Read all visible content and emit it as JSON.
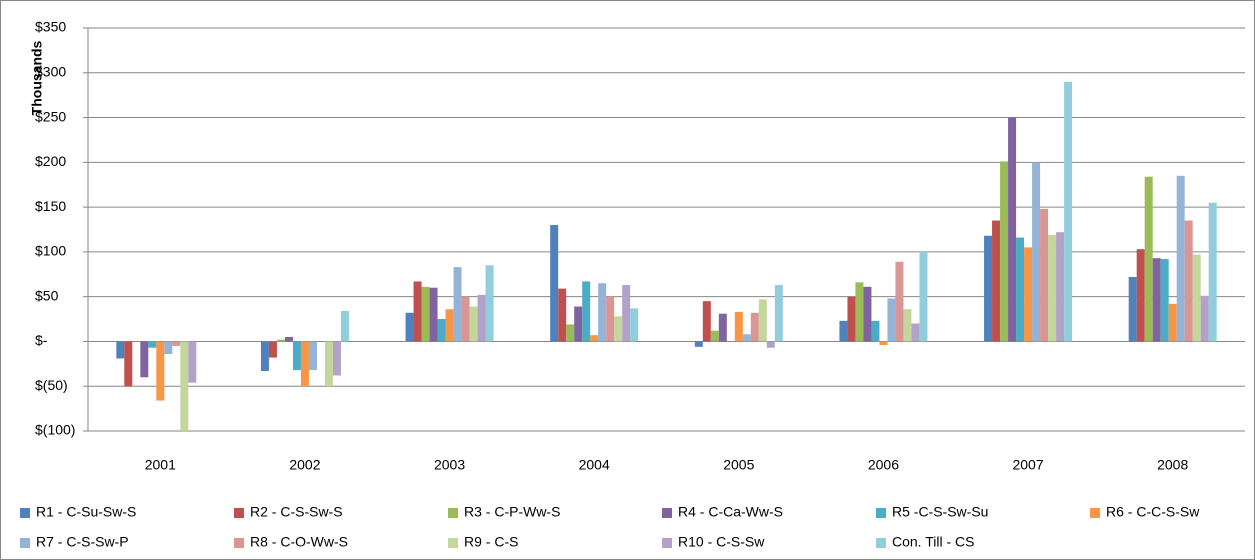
{
  "chart_data": {
    "type": "bar",
    "y_label": "Thousands",
    "categories": [
      "2001",
      "2002",
      "2003",
      "2004",
      "2005",
      "2006",
      "2007",
      "2008"
    ],
    "series": [
      {
        "name": "R1 - C-Su-Sw-S",
        "color": "#4f81bd",
        "values": [
          -19,
          -33,
          32,
          130,
          -6,
          23,
          118,
          72
        ]
      },
      {
        "name": "R2 - C-S-Sw-S",
        "color": "#c0504d",
        "values": [
          -50,
          -18,
          67,
          59,
          45,
          50,
          135,
          103
        ]
      },
      {
        "name": "R3 - C-P-Ww-S",
        "color": "#9bbb59",
        "values": [
          0,
          2,
          61,
          19,
          12,
          66,
          201,
          184
        ]
      },
      {
        "name": "R4 - C-Ca-Ww-S",
        "color": "#8064a2",
        "values": [
          -40,
          5,
          60,
          39,
          31,
          61,
          250,
          93
        ]
      },
      {
        "name": "R5 -C-S-Sw-Su",
        "color": "#4bacc6",
        "values": [
          -7,
          -32,
          25,
          67,
          0,
          23,
          116,
          92
        ]
      },
      {
        "name": "R6 - C-C-S-Sw",
        "color": "#f79646",
        "values": [
          -66,
          -50,
          36,
          7,
          33,
          -4,
          105,
          42
        ]
      },
      {
        "name": "R7 - C-S-Sw-P",
        "color": "#95b3d7",
        "values": [
          -14,
          -32,
          83,
          65,
          8,
          48,
          200,
          185
        ]
      },
      {
        "name": "R8 - C-O-Ww-S",
        "color": "#da9694",
        "values": [
          -5,
          0,
          50,
          50,
          32,
          89,
          148,
          135
        ]
      },
      {
        "name": "R9 - C-S",
        "color": "#c3d69b",
        "values": [
          -100,
          -50,
          39,
          28,
          47,
          36,
          119,
          97
        ]
      },
      {
        "name": "R10 - C-S-Sw",
        "color": "#b3a2c7",
        "values": [
          -46,
          -38,
          52,
          63,
          -7,
          20,
          122,
          51
        ]
      },
      {
        "name": "Con. Till - CS",
        "color": "#92cddc",
        "values": [
          0,
          34,
          85,
          37,
          63,
          100,
          290,
          155
        ]
      }
    ],
    "ylim": [
      -100,
      350
    ],
    "yticks": [
      {
        "value": -100,
        "label": "$(100)"
      },
      {
        "value": -50,
        "label": "$(50)"
      },
      {
        "value": 0,
        "label": "$-"
      },
      {
        "value": 50,
        "label": "$50"
      },
      {
        "value": 100,
        "label": "$100"
      },
      {
        "value": 150,
        "label": "$150"
      },
      {
        "value": 200,
        "label": "$200"
      },
      {
        "value": 250,
        "label": "$250"
      },
      {
        "value": 300,
        "label": "$300"
      },
      {
        "value": 350,
        "label": "$350"
      }
    ],
    "grid": true
  }
}
